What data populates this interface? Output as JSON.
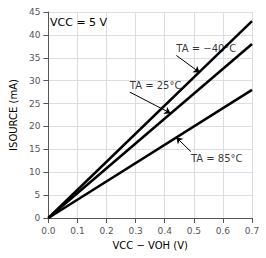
{
  "chart_data": {
    "type": "line",
    "xlabel": "VCC − VOH (V)",
    "ylabel": "ISOURCE (mA)",
    "x": [
      0.0,
      0.7
    ],
    "series": [
      {
        "values": [
          0.0,
          43.0
        ],
        "color": "#000000"
      },
      {
        "values": [
          0.0,
          38.0
        ],
        "color": "#000000"
      },
      {
        "values": [
          0.0,
          28.0
        ],
        "color": "#000000"
      }
    ],
    "xlim": [
      0.0,
      0.7
    ],
    "ylim": [
      0,
      45
    ],
    "xticks": [
      {
        "value": 0.0,
        "label": "0.0"
      },
      0.1,
      0.2,
      0.3,
      0.4,
      0.5,
      0.6,
      0.7
    ],
    "yticks": [
      0,
      5,
      10,
      15,
      20,
      25,
      30,
      35,
      40,
      45
    ],
    "grid": true,
    "annotations": [
      {
        "text": "VCC = 5 V"
      },
      {
        "text": "TA = −40°C",
        "xy": [
          0.52,
          31.8
        ],
        "xytext": [
          0.44,
          35.5
        ]
      },
      {
        "text": "TA = 25°C",
        "xy": [
          0.42,
          22.9
        ],
        "xytext": [
          0.28,
          27.5
        ]
      },
      {
        "text": "TA = 85°C",
        "xy": [
          0.44,
          17.6
        ],
        "xytext": [
          0.49,
          14.5
        ]
      }
    ]
  }
}
